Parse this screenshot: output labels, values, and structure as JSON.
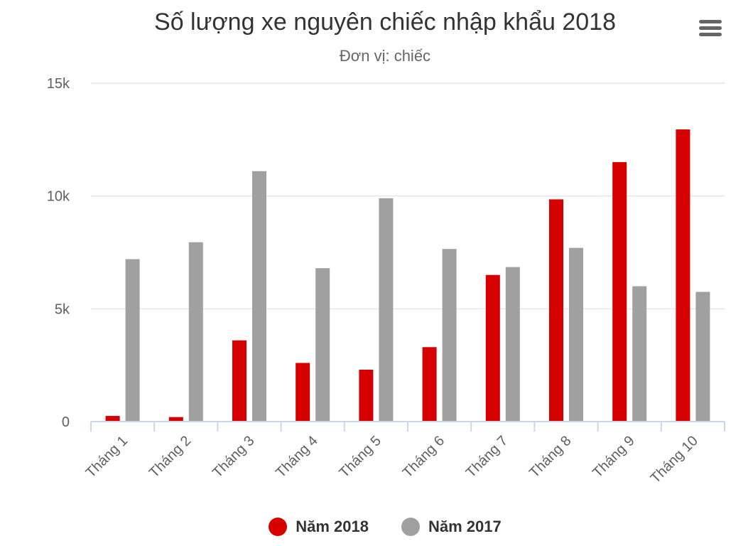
{
  "chart_data": {
    "type": "bar",
    "title": "Số lượng xe nguyên chiếc nhập khẩu 2018",
    "subtitle": "Đơn vị: chiếc",
    "xlabel": "",
    "ylabel": "",
    "categories": [
      "Tháng 1",
      "Tháng 2",
      "Tháng 3",
      "Tháng 4",
      "Tháng 5",
      "Tháng 6",
      "Tháng 7",
      "Tháng 8",
      "Tháng 9",
      "Tháng 10"
    ],
    "series": [
      {
        "name": "Năm 2018",
        "color": "#d60000",
        "values": [
          250,
          200,
          3600,
          2600,
          2300,
          3300,
          6500,
          9850,
          11500,
          12950
        ]
      },
      {
        "name": "Năm 2017",
        "color": "#a0a0a0",
        "values": [
          7200,
          7950,
          11100,
          6800,
          9900,
          7650,
          6850,
          7700,
          6000,
          5750
        ]
      }
    ],
    "ylim": [
      0,
      15000
    ],
    "yticks": [
      0,
      5000,
      10000,
      15000
    ],
    "ytick_labels": [
      "0",
      "5k",
      "10k",
      "15k"
    ],
    "grid": true,
    "legend_position": "bottom-center"
  },
  "menu": {
    "icon": "hamburger-menu-icon"
  }
}
